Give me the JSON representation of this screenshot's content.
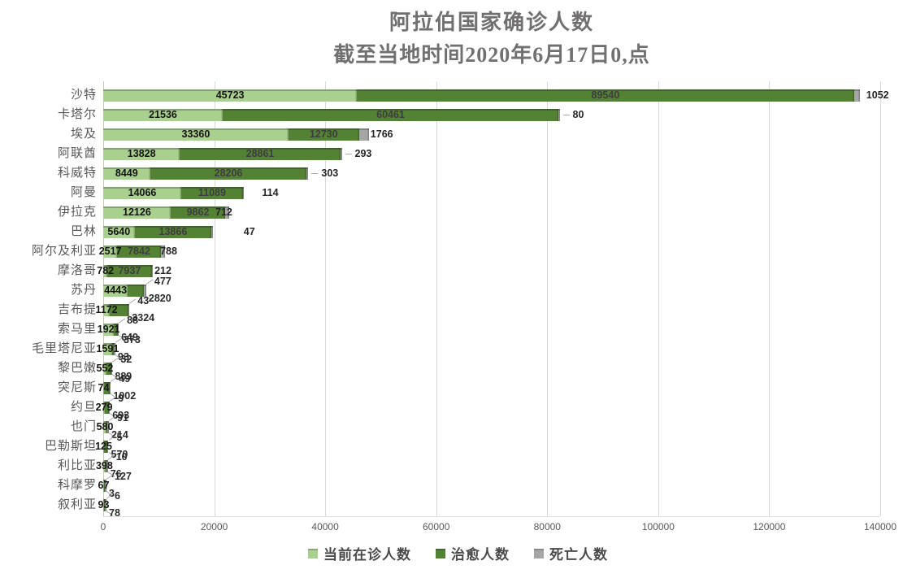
{
  "chart_data": {
    "type": "bar",
    "orientation": "horizontal",
    "stacked": true,
    "title": "阿拉伯国家确诊人数",
    "subtitle": "截至当地时间2020年6月17日0,点",
    "title_color": "#716F6F",
    "xlim": [
      0,
      140000
    ],
    "x_ticks": [
      "0",
      "20000",
      "40000",
      "60000",
      "80000",
      "100000",
      "120000",
      "140000"
    ],
    "grid": true,
    "legend_position": "bottom",
    "series": [
      {
        "name": "当前在诊人数",
        "key": "current",
        "color": "#A9D08E"
      },
      {
        "name": "治愈人数",
        "key": "cured",
        "color": "#548235"
      },
      {
        "name": "死亡人数",
        "key": "death",
        "color": "#A6A6A6"
      }
    ],
    "rows": [
      {
        "country": "沙特",
        "current": 45723,
        "cured": 89540,
        "death": 1052,
        "cured_label": "inline",
        "death_label": "right",
        "death_dx": 8,
        "death_dash": false
      },
      {
        "country": "卡塔尔",
        "current": 21536,
        "cured": 60461,
        "death": 80,
        "cured_label": "inline",
        "death_label": "right",
        "death_dx": 16,
        "death_dash": true
      },
      {
        "country": "埃及",
        "current": 33360,
        "cured": 12730,
        "death": 1766,
        "cured_label": "inline",
        "death_label": "right",
        "death_dx": 2,
        "death_dash": false
      },
      {
        "country": "阿联酋",
        "current": 13828,
        "cured": 28861,
        "death": 293,
        "cured_label": "inline",
        "death_label": "right",
        "death_dx": 16,
        "death_dash": true
      },
      {
        "country": "科威特",
        "current": 8449,
        "cured": 28206,
        "death": 303,
        "cured_label": "inline",
        "death_label": "right",
        "death_dx": 16,
        "death_dash": true
      },
      {
        "country": "阿曼",
        "current": 14066,
        "cured": 11089,
        "death": 114,
        "cured_label": "inline",
        "death_label": "right",
        "death_dx": 22,
        "death_dash": false
      },
      {
        "country": "伊拉克",
        "current": 12126,
        "cured": 9862,
        "death": 712,
        "cured_label": "inline",
        "death_label": "right",
        "death_dx": -17,
        "death_dash": false
      },
      {
        "country": "巴林",
        "current": 5640,
        "cured": 13866,
        "death": 47,
        "cured_label": "inline",
        "death_label": "right",
        "death_dx": 38,
        "death_dash": false
      },
      {
        "country": "阿尔及利亚",
        "current": 2517,
        "cured": 7842,
        "death": 788,
        "cured_label": "inline",
        "death_label": "right",
        "death_dx": -6,
        "death_dash": false
      },
      {
        "country": "摩洛哥",
        "current": 782,
        "cured": 7937,
        "death": 212,
        "cured_label": "inline",
        "death_label": "right",
        "death_dx": 2,
        "death_dash": false
      },
      {
        "country": "苏丹",
        "current": 4443,
        "cured": 2820,
        "death": 477,
        "cured_label": "callout_bottom",
        "death_label": "callout_top"
      },
      {
        "country": "吉布提",
        "current": 1172,
        "cured": 3324,
        "death": 43,
        "cured_label": "callout_bottom",
        "death_label": "callout_top"
      },
      {
        "country": "索马里",
        "current": 1921,
        "cured": 649,
        "death": 88,
        "cured_label": "callout_bottom",
        "death_label": "callout_top"
      },
      {
        "country": "毛里塔尼亚",
        "current": 1591,
        "cured": 373,
        "death": 93,
        "cured_label": "callout_top",
        "death_label": "callout_bottom"
      },
      {
        "country": "黎巴嫩",
        "current": 552,
        "cured": 889,
        "death": 32,
        "cured_label": "callout_bottom",
        "death_label": "callout_top"
      },
      {
        "country": "突尼斯",
        "current": 74,
        "cured": 1002,
        "death": 49,
        "cured_label": "callout_bottom",
        "death_label": "callout_top"
      },
      {
        "country": "约旦",
        "current": 279,
        "cured": 693,
        "death": 9,
        "cured_label": "callout_bottom",
        "death_label": "callout_top"
      },
      {
        "country": "也门",
        "current": 580,
        "cured": 91,
        "death": 214,
        "cured_label": "callout_top",
        "death_label": "callout_bottom"
      },
      {
        "country": "巴勒斯坦",
        "current": 125,
        "cured": 570,
        "death": 5,
        "cured_label": "callout_bottom",
        "death_label": "callout_top"
      },
      {
        "country": "利比亚",
        "current": 398,
        "cured": 76,
        "death": 10,
        "cured_label": "callout_bottom",
        "death_label": "callout_top"
      },
      {
        "country": "科摩罗",
        "current": 67,
        "cured": 127,
        "death": 3,
        "cured_label": "callout_top",
        "death_label": "callout_bottom"
      },
      {
        "country": "叙利亚",
        "current": 93,
        "cured": 78,
        "death": 6,
        "cured_label": "callout_bottom",
        "death_label": "callout_top"
      }
    ]
  }
}
